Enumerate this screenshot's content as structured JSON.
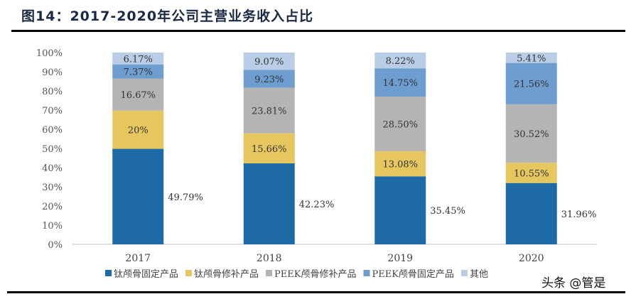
{
  "title": "图14：2017-2020年公司主营业务收入占比",
  "watermark": "头条 @管是",
  "chart_data": {
    "type": "bar",
    "stacked": true,
    "categories": [
      "2017",
      "2018",
      "2019",
      "2020"
    ],
    "ylim": [
      0,
      100
    ],
    "yticks": [
      "0%",
      "10%",
      "20%",
      "30%",
      "40%",
      "50%",
      "60%",
      "70%",
      "80%",
      "90%",
      "100%"
    ],
    "legend_position": "bottom",
    "grid": false,
    "series": [
      {
        "name": "钛颅骨固定产品",
        "color": "#1d6aa6",
        "values": [
          49.79,
          42.23,
          35.45,
          31.96
        ],
        "labels": [
          "49.79%",
          "42.23%",
          "35.45%",
          "31.96%"
        ]
      },
      {
        "name": "钛颅骨修补产品",
        "color": "#e5c65f",
        "values": [
          20,
          15.66,
          13.08,
          10.55
        ],
        "labels": [
          "20%",
          "15.66%",
          "13.08%",
          "10.55%"
        ]
      },
      {
        "name": "PEEK颅骨修补产品",
        "color": "#b4b4b4",
        "values": [
          16.67,
          23.81,
          28.5,
          30.52
        ],
        "labels": [
          "16.67%",
          "23.81%",
          "28.50%",
          "30.52%"
        ]
      },
      {
        "name": "PEEK颅骨固定产品",
        "color": "#6e9dcf",
        "values": [
          7.37,
          9.23,
          14.75,
          21.56
        ],
        "labels": [
          "7.37%",
          "9.23%",
          "14.75%",
          "21.56%"
        ]
      },
      {
        "name": "其他",
        "color": "#b9cde6",
        "values": [
          6.17,
          9.07,
          8.22,
          5.41
        ],
        "labels": [
          "6.17%",
          "9.07%",
          "8.22%",
          "5.41%"
        ]
      }
    ]
  }
}
